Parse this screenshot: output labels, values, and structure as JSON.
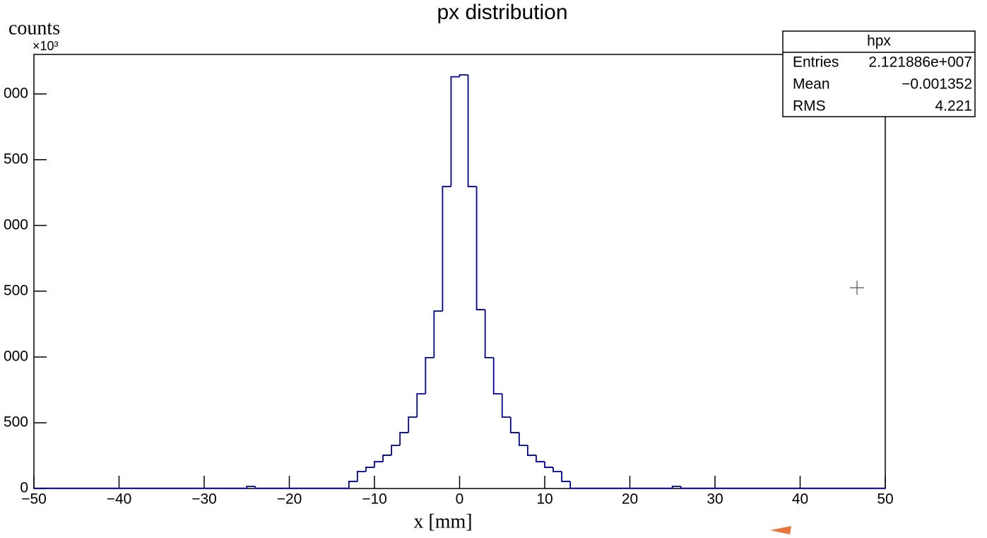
{
  "chart_data": {
    "type": "histogram",
    "title": "px distribution",
    "xlabel": "x [mm]",
    "ylabel": "counts",
    "y_exponent": "×10³",
    "color": "#000099",
    "bins": [
      -50,
      -49,
      -48,
      -47,
      -46,
      -45,
      -44,
      -43,
      -42,
      -41,
      -40,
      -39,
      -38,
      -37,
      -36,
      -35,
      -34,
      -33,
      -32,
      -31,
      -30,
      -29,
      -28,
      -27,
      -26,
      -25,
      -24,
      -23,
      -22,
      -21,
      -20,
      -19,
      -18,
      -17,
      -16,
      -15,
      -14,
      -13,
      -12,
      -11,
      -10,
      -9,
      -8,
      -7,
      -6,
      -5,
      -4,
      -3,
      -2,
      -1,
      0,
      1,
      2,
      3,
      4,
      5,
      6,
      7,
      8,
      9,
      10,
      11,
      12,
      13,
      14,
      15,
      16,
      17,
      18,
      19,
      20,
      21,
      22,
      23,
      24,
      25,
      26,
      27,
      28,
      29,
      30,
      31,
      32,
      33,
      34,
      35,
      36,
      37,
      38,
      39,
      40,
      41,
      42,
      43,
      44,
      45,
      46,
      47,
      48,
      49,
      50
    ],
    "values": [
      2,
      2,
      2,
      2,
      2,
      2,
      2,
      2,
      2,
      2,
      2,
      2,
      2,
      2,
      2,
      2,
      2,
      2,
      2,
      2,
      2,
      2,
      2,
      2,
      2,
      16,
      2,
      2,
      2,
      2,
      2,
      2,
      2,
      2,
      2,
      2,
      2,
      54,
      129,
      161,
      204,
      253,
      328,
      425,
      543,
      720,
      995,
      1349,
      2296,
      3130,
      3145,
      2296,
      1360,
      995,
      720,
      543,
      425,
      328,
      253,
      204,
      161,
      129,
      54,
      2,
      2,
      2,
      2,
      2,
      2,
      2,
      2,
      2,
      2,
      2,
      2,
      16,
      2,
      2,
      2,
      2,
      2,
      2,
      2,
      2,
      2,
      2,
      2,
      2,
      2,
      2,
      2,
      2,
      2,
      2,
      2,
      2,
      2,
      2,
      2,
      2
    ],
    "xlim": [
      -50,
      50
    ],
    "xticks": [
      {
        "value": -50,
        "label": "−50"
      },
      {
        "value": -40,
        "label": "−40"
      },
      {
        "value": -30,
        "label": "−30"
      },
      {
        "value": -20,
        "label": "−20"
      },
      {
        "value": -10,
        "label": "−10"
      },
      0,
      10,
      20,
      30,
      40,
      50
    ],
    "ylim": [
      0,
      3300
    ],
    "yticks": [
      0,
      {
        "value": 500,
        "label": "500"
      },
      {
        "value": 1000,
        "label": "000"
      },
      {
        "value": 1500,
        "label": "500"
      },
      {
        "value": 2000,
        "label": "000"
      },
      {
        "value": 2500,
        "label": "500"
      },
      {
        "value": 3000,
        "label": "000"
      }
    ],
    "stats": {
      "name": "hpx",
      "rows": [
        [
          "Entries",
          "2.121886e+007"
        ],
        [
          "Mean",
          "−0.001352"
        ],
        [
          "RMS",
          "4.221"
        ]
      ]
    }
  }
}
